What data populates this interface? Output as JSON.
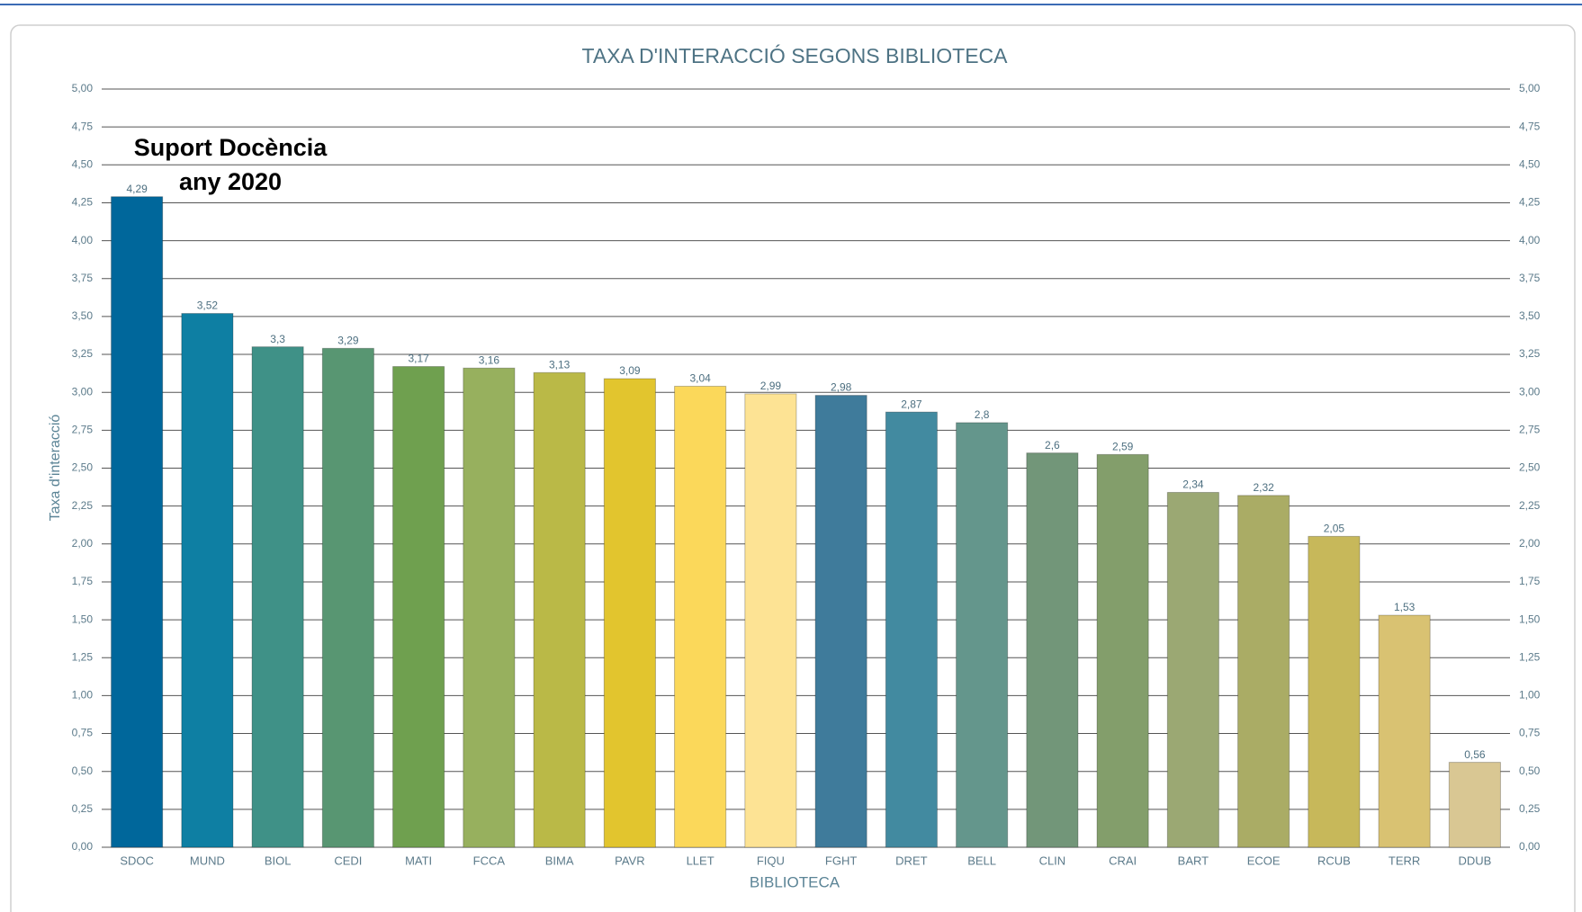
{
  "chart_data": {
    "type": "bar",
    "title": "TAXA D'INTERACCIÓ SEGONS BIBLIOTECA",
    "x_label": "BIBLIOTECA",
    "y_label": "Taxa d'interacció",
    "annotations": [
      "Suport Docència",
      "any 2020"
    ],
    "categories": [
      "SDOC",
      "MUND",
      "BIOL",
      "CEDI",
      "MATI",
      "FCCA",
      "BIMA",
      "PAVR",
      "LLET",
      "FIQU",
      "FGHT",
      "DRET",
      "BELL",
      "CLIN",
      "CRAI",
      "BART",
      "ECOE",
      "RCUB",
      "TERR",
      "DDUB"
    ],
    "values": [
      4.29,
      3.52,
      3.3,
      3.29,
      3.17,
      3.16,
      3.13,
      3.09,
      3.04,
      2.99,
      2.98,
      2.87,
      2.8,
      2.6,
      2.59,
      2.34,
      2.32,
      2.05,
      1.53,
      0.56
    ],
    "value_labels": [
      "4,29",
      "3,52",
      "3,3",
      "3,29",
      "3,17",
      "3,16",
      "3,13",
      "3,09",
      "3,04",
      "2,99",
      "2,98",
      "2,87",
      "2,8",
      "2,6",
      "2,59",
      "2,34",
      "2,32",
      "2,05",
      "1,53",
      "0,56"
    ],
    "colors": [
      "#00679b",
      "#0e7fa3",
      "#3f9187",
      "#589672",
      "#6fa04f",
      "#97b05e",
      "#bab947",
      "#e2c52e",
      "#fbd85a",
      "#fde394",
      "#3f7b9b",
      "#428aa0",
      "#64968c",
      "#729679",
      "#839e6b",
      "#9ba873",
      "#aaac65",
      "#c7b85a",
      "#d9c272",
      "#d9c793"
    ],
    "ylim": [
      0,
      5
    ],
    "yticks": [
      {
        "value": 0,
        "label": "0,00"
      },
      {
        "value": 0.25,
        "label": "0,25"
      },
      {
        "value": 0.5,
        "label": "0,50"
      },
      {
        "value": 0.75,
        "label": "0,75"
      },
      {
        "value": 1,
        "label": "1,00"
      },
      {
        "value": 1.25,
        "label": "1,25"
      },
      {
        "value": 1.5,
        "label": "1,50"
      },
      {
        "value": 1.75,
        "label": "1,75"
      },
      {
        "value": 2,
        "label": "2,00"
      },
      {
        "value": 2.25,
        "label": "2,25"
      },
      {
        "value": 2.5,
        "label": "2,50"
      },
      {
        "value": 2.75,
        "label": "2,75"
      },
      {
        "value": 3,
        "label": "3,00"
      },
      {
        "value": 3.25,
        "label": "3,25"
      },
      {
        "value": 3.5,
        "label": "3,50"
      },
      {
        "value": 3.75,
        "label": "3,75"
      },
      {
        "value": 4,
        "label": "4,00"
      },
      {
        "value": 4.25,
        "label": "4,25"
      },
      {
        "value": 4.5,
        "label": "4,50"
      },
      {
        "value": 4.75,
        "label": "4,75"
      },
      {
        "value": 5,
        "label": "5,00"
      }
    ],
    "grid": true
  }
}
